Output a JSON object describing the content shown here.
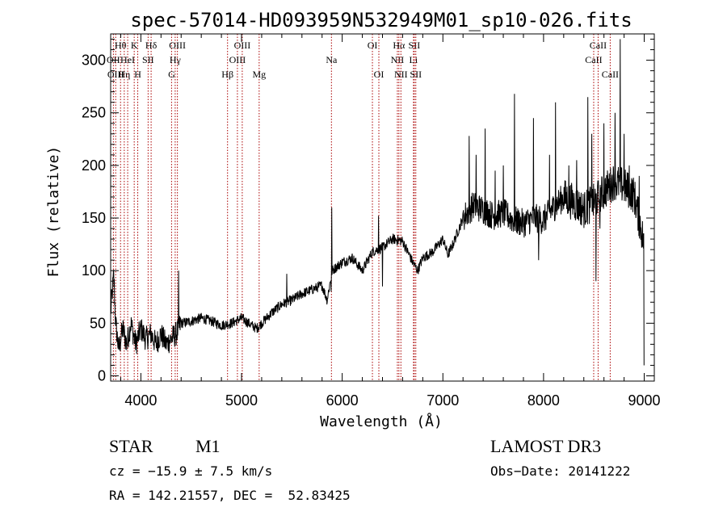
{
  "chart_data": {
    "type": "line",
    "title": "spec-57014-HD093959N532949M01_sp10-026.fits",
    "xlabel": "Wavelength (Å)",
    "ylabel": "Flux (relative)",
    "xlim": [
      3700,
      9100
    ],
    "ylim": [
      -5,
      325
    ],
    "xticks": [
      4000,
      5000,
      6000,
      7000,
      8000,
      9000
    ],
    "yticks": [
      0,
      50,
      100,
      150,
      200,
      250,
      300
    ],
    "grid": false,
    "legend": "none",
    "spectrum_anchor_points": [
      [
        3700,
        60
      ],
      [
        3730,
        95
      ],
      [
        3750,
        50
      ],
      [
        3780,
        25
      ],
      [
        3820,
        45
      ],
      [
        3860,
        30
      ],
      [
        3900,
        50
      ],
      [
        3950,
        30
      ],
      [
        4000,
        45
      ],
      [
        4050,
        35
      ],
      [
        4100,
        40
      ],
      [
        4150,
        30
      ],
      [
        4200,
        40
      ],
      [
        4250,
        30
      ],
      [
        4300,
        35
      ],
      [
        4350,
        40
      ],
      [
        4400,
        50
      ],
      [
        4500,
        52
      ],
      [
        4600,
        55
      ],
      [
        4700,
        52
      ],
      [
        4800,
        48
      ],
      [
        4900,
        50
      ],
      [
        5000,
        55
      ],
      [
        5100,
        48
      ],
      [
        5150,
        45
      ],
      [
        5200,
        50
      ],
      [
        5300,
        60
      ],
      [
        5400,
        68
      ],
      [
        5500,
        72
      ],
      [
        5600,
        78
      ],
      [
        5700,
        82
      ],
      [
        5800,
        86
      ],
      [
        5850,
        72
      ],
      [
        5900,
        100
      ],
      [
        6000,
        108
      ],
      [
        6100,
        112
      ],
      [
        6200,
        100
      ],
      [
        6300,
        118
      ],
      [
        6400,
        122
      ],
      [
        6500,
        130
      ],
      [
        6600,
        128
      ],
      [
        6700,
        108
      ],
      [
        6750,
        100
      ],
      [
        6800,
        112
      ],
      [
        6900,
        118
      ],
      [
        7000,
        130
      ],
      [
        7050,
        115
      ],
      [
        7100,
        125
      ],
      [
        7200,
        150
      ],
      [
        7300,
        162
      ],
      [
        7400,
        158
      ],
      [
        7500,
        152
      ],
      [
        7600,
        155
      ],
      [
        7700,
        148
      ],
      [
        7800,
        145
      ],
      [
        7900,
        150
      ],
      [
        8000,
        148
      ],
      [
        8100,
        160
      ],
      [
        8200,
        170
      ],
      [
        8300,
        165
      ],
      [
        8400,
        158
      ],
      [
        8500,
        165
      ],
      [
        8600,
        175
      ],
      [
        8700,
        185
      ],
      [
        8800,
        180
      ],
      [
        8900,
        172
      ],
      [
        9000,
        125
      ]
    ],
    "spectrum_spikes": [
      [
        3735,
        92
      ],
      [
        4375,
        100
      ],
      [
        5450,
        97
      ],
      [
        5890,
        80
      ],
      [
        5895,
        160
      ],
      [
        6360,
        152
      ],
      [
        6400,
        85
      ],
      [
        7260,
        228
      ],
      [
        7330,
        210
      ],
      [
        7420,
        235
      ],
      [
        7520,
        195
      ],
      [
        7600,
        200
      ],
      [
        7710,
        268
      ],
      [
        7900,
        245
      ],
      [
        7950,
        110
      ],
      [
        8060,
        210
      ],
      [
        8120,
        260
      ],
      [
        8250,
        200
      ],
      [
        8330,
        205
      ],
      [
        8440,
        265
      ],
      [
        8480,
        230
      ],
      [
        8520,
        90
      ],
      [
        8560,
        140
      ],
      [
        8600,
        240
      ],
      [
        8710,
        250
      ],
      [
        8760,
        320
      ],
      [
        8800,
        230
      ],
      [
        8850,
        200
      ],
      [
        8950,
        190
      ],
      [
        9000,
        10
      ]
    ],
    "line_markers": [
      {
        "x": 3727,
        "label": "OII",
        "row": 1
      },
      {
        "x": 3750,
        "label": "OIII",
        "row": 2
      },
      {
        "x": 3798,
        "label": "Hθ",
        "row": 0
      },
      {
        "x": 3835,
        "label": "Hη",
        "row": 2
      },
      {
        "x": 3869,
        "label": "HeI",
        "row": 1
      },
      {
        "x": 3934,
        "label": "K",
        "row": 0
      },
      {
        "x": 3969,
        "label": "H",
        "row": 2
      },
      {
        "x": 4072,
        "label": "SII",
        "row": 1
      },
      {
        "x": 4102,
        "label": "Hδ",
        "row": 0
      },
      {
        "x": 4305,
        "label": "G",
        "row": 2
      },
      {
        "x": 4341,
        "label": "Hγ",
        "row": 1
      },
      {
        "x": 4363,
        "label": "OIII",
        "row": 0
      },
      {
        "x": 4861,
        "label": "Hβ",
        "row": 2
      },
      {
        "x": 4959,
        "label": "OIII",
        "row": 1
      },
      {
        "x": 5007,
        "label": "OIII",
        "row": 0
      },
      {
        "x": 5175,
        "label": "Mg",
        "row": 2
      },
      {
        "x": 5893,
        "label": "Na",
        "row": 1
      },
      {
        "x": 6300,
        "label": "OI",
        "row": 0
      },
      {
        "x": 6364,
        "label": "OI",
        "row": 2
      },
      {
        "x": 6548,
        "label": "NII",
        "row": 1
      },
      {
        "x": 6563,
        "label": "Hα",
        "row": 0
      },
      {
        "x": 6583,
        "label": "NII",
        "row": 2
      },
      {
        "x": 6708,
        "label": "Li",
        "row": 1
      },
      {
        "x": 6716,
        "label": "SII",
        "row": 0
      },
      {
        "x": 6731,
        "label": "SII",
        "row": 2
      },
      {
        "x": 8498,
        "label": "CaII",
        "row": 1
      },
      {
        "x": 8542,
        "label": "CaII",
        "row": 0
      },
      {
        "x": 8662,
        "label": "CaII",
        "row": 2
      }
    ]
  },
  "info": {
    "object_class": "STAR",
    "subclass": "M1",
    "survey": "LAMOST DR3",
    "cz": "cz = −15.9 ± 7.5 km/s",
    "obs_date": "Obs−Date: 20141222",
    "coords": "RA = 142.21557, DEC =  52.83425"
  },
  "colors": {
    "spectrum": "#000000",
    "marker_lines": "#aa0000",
    "axes": "#000000",
    "background": "#ffffff"
  }
}
